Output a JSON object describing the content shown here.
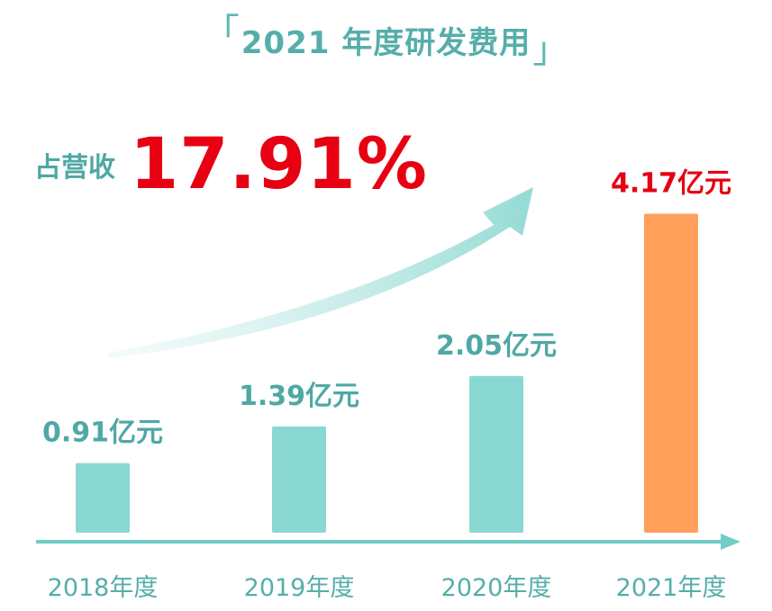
{
  "title": "2021 年度研发费用",
  "title_open": "「",
  "title_close": "」",
  "ratio": {
    "label": "占营收",
    "value": "17.91%"
  },
  "colors": {
    "bar": "#8ad8d2",
    "highlight_bar": "#ff9f5a",
    "label": "#4fa8a4",
    "highlight_label": "#e60012",
    "axis": "#6fcdc6",
    "year_label": "#55aeaa"
  },
  "chart_data": {
    "type": "bar",
    "title": "2021 年度研发费用",
    "categories": [
      "2018年度",
      "2019年度",
      "2020年度",
      "2021年度"
    ],
    "values": [
      0.91,
      1.39,
      2.05,
      4.17
    ],
    "unit": "亿元",
    "value_labels": [
      "0.91亿元",
      "1.39亿元",
      "2.05亿元",
      "4.17亿元"
    ],
    "highlight_index": 3,
    "ylim": [
      0,
      4.5
    ],
    "grid": false,
    "legend": "none",
    "annotation": "占营收 17.91%"
  }
}
